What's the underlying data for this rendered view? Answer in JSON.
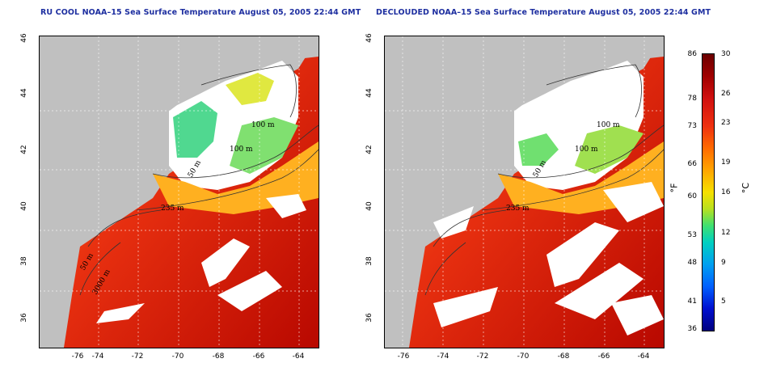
{
  "titles": {
    "left": "RU COOL NOAA–15 Sea Surface Temperature August 05, 2005 22:44 GMT",
    "right": "DECLOUDED NOAA–15 Sea Surface Temperature August 05, 2005 22:44 GMT"
  },
  "axes": {
    "y_ticks": [
      "46",
      "44",
      "42",
      "40",
      "38",
      "36"
    ],
    "x_ticks": [
      "-76",
      "-74",
      "-72",
      "-70",
      "-68",
      "-66",
      "-64"
    ]
  },
  "contour_labels": [
    "100 m",
    "100 m",
    "50 m",
    "235 m",
    "50 m",
    "3000 m"
  ],
  "colorbar": {
    "fahrenheit_ticks": [
      "86",
      "78",
      "73",
      "66",
      "60",
      "53",
      "48",
      "41",
      "36"
    ],
    "celsius_ticks": [
      "30",
      "26",
      "23",
      "19",
      "16",
      "12",
      "9",
      "5"
    ],
    "unit_f": "°F",
    "unit_c": "°C"
  },
  "colors": {
    "land": "#c0c0c0",
    "warm_water": "#e02010",
    "hot_water": "#b00000",
    "cool_water": "#f0e020",
    "cold_water": "#40d0a0",
    "cloud": "#ffffff"
  }
}
